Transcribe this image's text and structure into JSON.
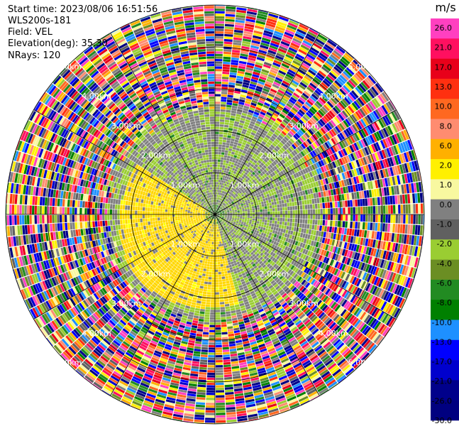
{
  "header": {
    "start_time": "Start time: 2023/08/06 16:51:56",
    "instrument": "WLS200s-181",
    "field": "Field: VEL",
    "elevation": "Elevation(deg): 35.30",
    "nrays": "NRays: 120"
  },
  "chart_data": {
    "type": "heatmap",
    "projection": "polar-ppi",
    "field": "VEL",
    "unit": "m/s",
    "n_rays": 120,
    "max_range_km": 5.0,
    "range_rings_km": [
      1.0,
      2.0,
      3.0,
      4.0,
      5.0
    ],
    "range_ring_labels": [
      "1.00km",
      "2.00km",
      "3.00km",
      "4.00km",
      "5.00km"
    ],
    "spokes_deg": [
      0,
      30,
      60,
      90,
      120,
      150,
      180,
      210,
      240,
      270,
      300,
      330
    ],
    "colorbar": {
      "ticks": [
        "26.0",
        "21.0",
        "17.0",
        "13.0",
        "10.0",
        "8.0",
        "6.0",
        "2.0",
        "1.0",
        "0.0",
        "-1.0",
        "-2.0",
        "-4.0",
        "-6.0",
        "-8.0",
        "-10.0",
        "-13.0",
        "-17.0",
        "-21.0",
        "-26.0",
        "-30.0"
      ],
      "colors": [
        "#ff40c0",
        "#ff1060",
        "#e8001a",
        "#ff3010",
        "#ff6820",
        "#ff8c70",
        "#ffb000",
        "#fff000",
        "#f8f8a0",
        "#808080",
        "#606060",
        "#9acd32",
        "#6b8e23",
        "#228b22",
        "#008000",
        "#1e90ff",
        "#0000ff",
        "#0000cd",
        "#00008b",
        "#000080"
      ]
    },
    "regions": {
      "near_range_km": [
        0,
        2.4
      ],
      "near_mix": {
        "gray": 0.55,
        "green": 0.45
      },
      "yellow_sector_deg": [
        165,
        300
      ],
      "yellow_range_km": [
        0.1,
        2.4
      ],
      "outer_noise_start_km": 2.4
    }
  }
}
